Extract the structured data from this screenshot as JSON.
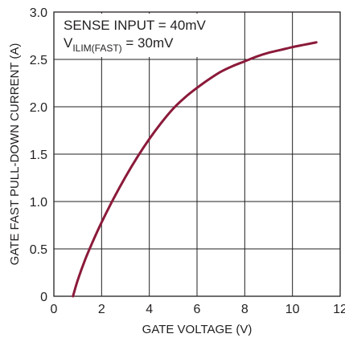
{
  "chart_data": {
    "type": "line",
    "title": "",
    "xlabel": "GATE VOLTAGE (V)",
    "ylabel": "GATE FAST PULL-DOWN CURRENT (A)",
    "xlim": [
      0,
      12
    ],
    "ylim": [
      0,
      3.0
    ],
    "xticks": [
      "0",
      "2",
      "4",
      "6",
      "8",
      "10",
      "12"
    ],
    "yticks": [
      "0",
      "0.5",
      "1.0",
      "1.5",
      "2.0",
      "2.5",
      "3.0"
    ],
    "grid": true,
    "annotation": {
      "line1": "SENSE INPUT = 40mV",
      "line2_prefix": "V",
      "line2_sub": "ILIM(FAST)",
      "line2_suffix": " = 30mV"
    },
    "series": [
      {
        "color": "#8b1a3a",
        "x": [
          0.8,
          1.0,
          1.3,
          1.6,
          2.0,
          2.5,
          3.0,
          3.5,
          4.0,
          4.5,
          5.0,
          5.5,
          6.0,
          6.5,
          7.0,
          7.5,
          8.0,
          8.5,
          9.0,
          9.5,
          10.0,
          10.5,
          11.0
        ],
        "y": [
          0.0,
          0.17,
          0.38,
          0.56,
          0.78,
          1.03,
          1.26,
          1.47,
          1.66,
          1.83,
          1.98,
          2.1,
          2.2,
          2.29,
          2.37,
          2.43,
          2.48,
          2.53,
          2.57,
          2.6,
          2.63,
          2.655,
          2.68
        ]
      }
    ]
  }
}
